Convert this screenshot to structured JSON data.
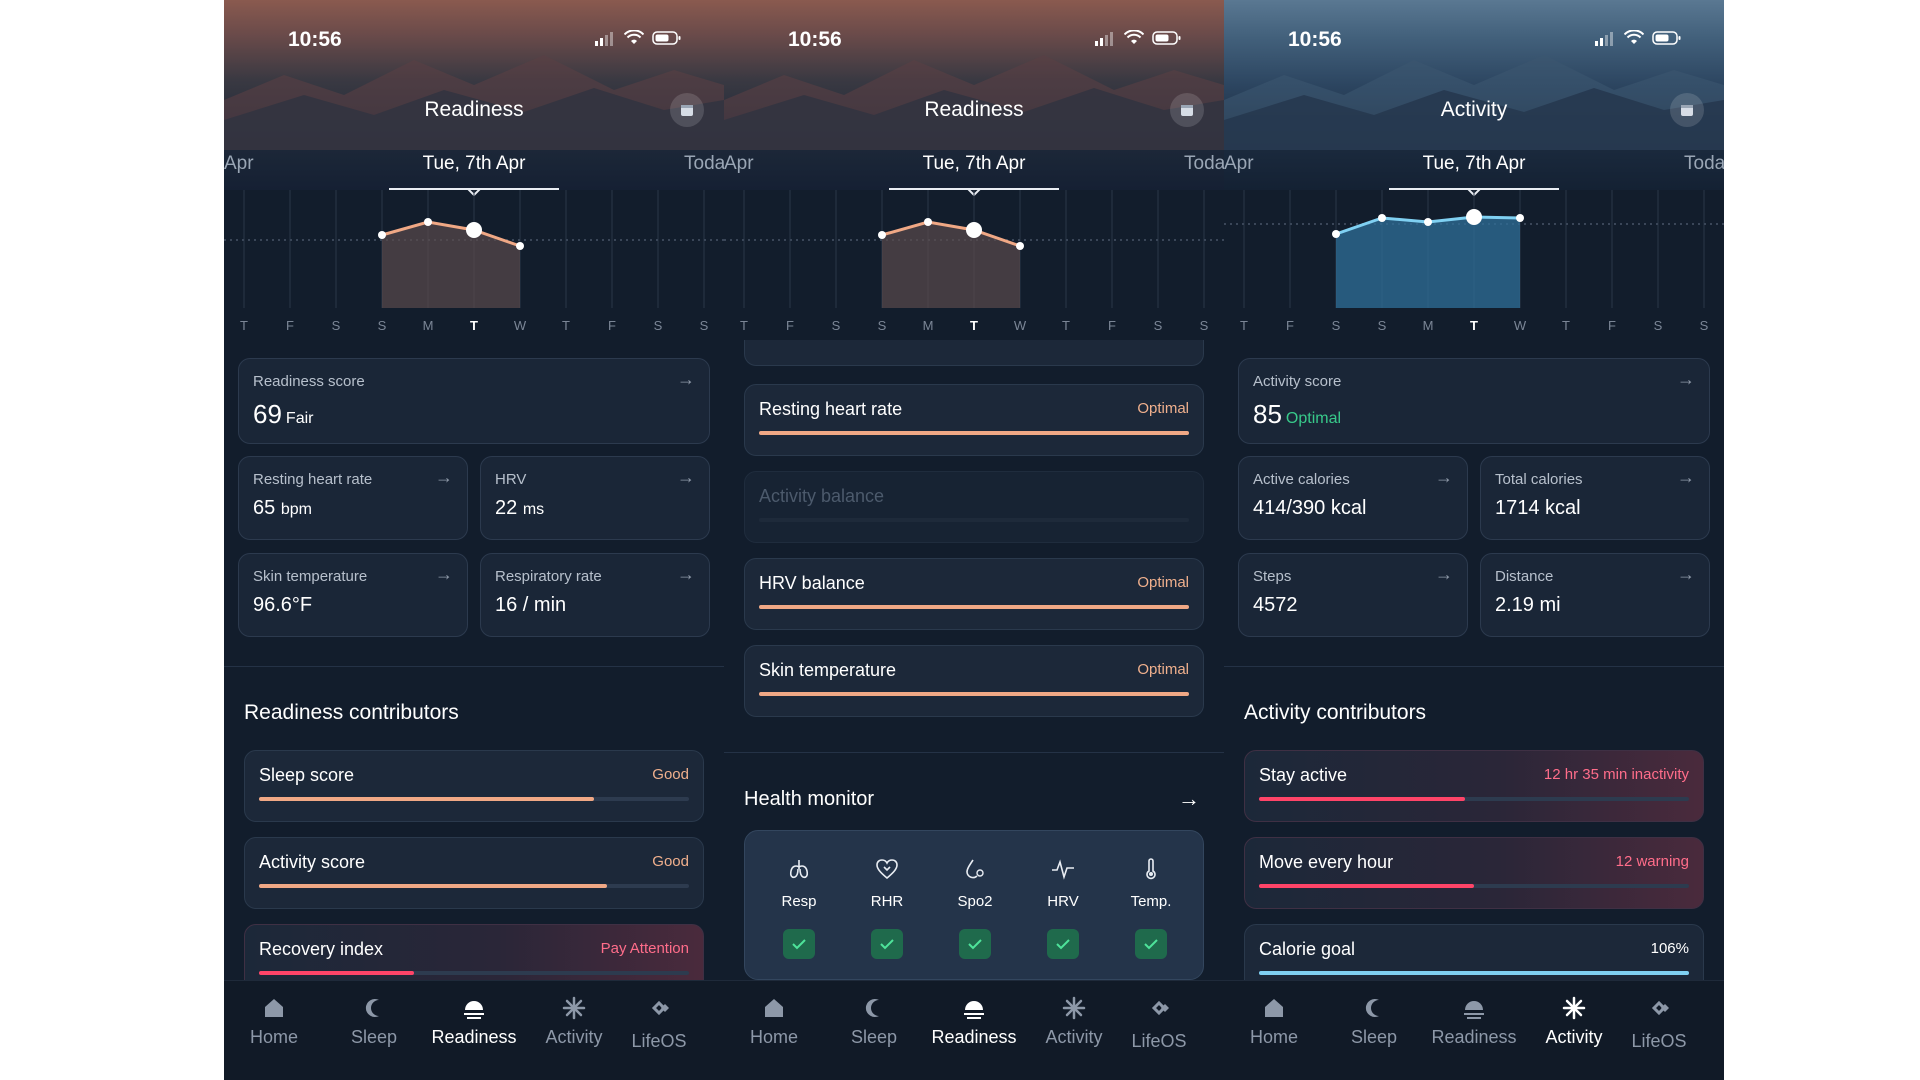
{
  "status": {
    "time": "10:56"
  },
  "screens": [
    {
      "title": "Readiness",
      "dates": {
        "left": "Apr",
        "center": "Tue, 7th Apr",
        "right": "Toda"
      },
      "weekdays": [
        "T",
        "F",
        "S",
        "S",
        "M",
        "T",
        "W",
        "T",
        "F",
        "S",
        "S"
      ],
      "score_card": {
        "label": "Readiness score",
        "value": "69",
        "qualifier": "Fair"
      },
      "metrics": [
        {
          "label": "Resting heart rate",
          "value": "65",
          "unit": "bpm"
        },
        {
          "label": "HRV",
          "value": "22",
          "unit": "ms"
        },
        {
          "label": "Skin temperature",
          "value": "96.6°F",
          "unit": ""
        },
        {
          "label": "Respiratory rate",
          "value": "16 / min",
          "unit": ""
        }
      ],
      "contributors_title": "Readiness contributors",
      "contributors": [
        {
          "label": "Sleep score",
          "status": "Good",
          "level": 0.78
        },
        {
          "label": "Activity score",
          "status": "Good",
          "level": 0.81
        },
        {
          "label": "Recovery index",
          "status": "Pay Attention",
          "level": 0.36
        }
      ]
    },
    {
      "title": "Readiness",
      "dates": {
        "left": "Apr",
        "center": "Tue, 7th Apr",
        "right": "Toda"
      },
      "weekdays": [
        "T",
        "F",
        "S",
        "S",
        "M",
        "T",
        "W",
        "T",
        "F",
        "S",
        "S"
      ],
      "contributors": [
        {
          "label": "Resting heart rate",
          "status": "Optimal",
          "level": 1.0
        },
        {
          "label": "Activity balance",
          "status": "",
          "level": 0
        },
        {
          "label": "HRV balance",
          "status": "Optimal",
          "level": 1.0
        },
        {
          "label": "Skin temperature",
          "status": "Optimal",
          "level": 1.0
        }
      ],
      "health_monitor": {
        "title": "Health monitor",
        "items": [
          {
            "label": "Resp",
            "icon": "lungs-icon"
          },
          {
            "label": "RHR",
            "icon": "heart-icon"
          },
          {
            "label": "Spo2",
            "icon": "oxygen-drop-icon"
          },
          {
            "label": "HRV",
            "icon": "pulse-wave-icon"
          },
          {
            "label": "Temp.",
            "icon": "thermometer-icon"
          }
        ]
      }
    },
    {
      "title": "Activity",
      "dates": {
        "left": "Apr",
        "center": "Tue, 7th Apr",
        "right": "Toda"
      },
      "weekdays": [
        "T",
        "F",
        "S",
        "S",
        "M",
        "T",
        "W",
        "T",
        "F",
        "S",
        "S"
      ],
      "score_card": {
        "label": "Activity score",
        "value": "85",
        "qualifier": "Optimal"
      },
      "metrics": [
        {
          "label": "Active calories",
          "value": "414/390 kcal",
          "unit": ""
        },
        {
          "label": "Total calories",
          "value": "1714 kcal",
          "unit": ""
        },
        {
          "label": "Steps",
          "value": "4572",
          "unit": ""
        },
        {
          "label": "Distance",
          "value": "2.19 mi",
          "unit": ""
        }
      ],
      "contributors_title": "Activity contributors",
      "contributors": [
        {
          "label": "Stay active",
          "status": "12 hr 35 min inactivity",
          "level": 0.48
        },
        {
          "label": "Move every hour",
          "status": "12 warning",
          "level": 0.5
        },
        {
          "label": "Calorie goal",
          "status": "106%",
          "level": 1.0
        }
      ]
    }
  ],
  "nav": [
    {
      "label": "Home",
      "icon": "home-icon"
    },
    {
      "label": "Sleep",
      "icon": "moon-icon"
    },
    {
      "label": "Readiness",
      "icon": "sunrise-icon"
    },
    {
      "label": "Activity",
      "icon": "sparkle-icon"
    },
    {
      "label": "LifeOS",
      "icon": "diamond-icon"
    }
  ],
  "colors": {
    "readiness_accent": "#f0a885",
    "activity_accent": "#7fd0f2",
    "warning": "#ff4468",
    "optimal": "#38c98a"
  }
}
